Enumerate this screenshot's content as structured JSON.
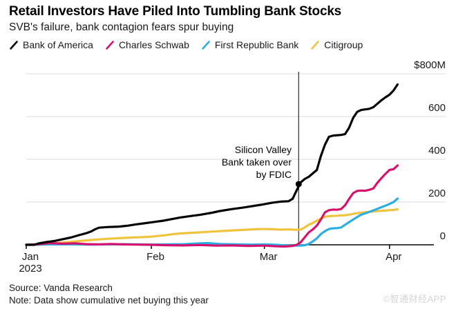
{
  "header": {
    "title": "Retail Investors Have Piled Into Tumbling Bank Stocks",
    "subtitle": "SVB's failure, bank contagion fears spur buying"
  },
  "footer": {
    "source": "Source: Vanda Research",
    "note": "Note: Data show cumulative net buying this year"
  },
  "watermark": "©智通财经APP",
  "colors": {
    "bank_of_america": "#000000",
    "charles_schwab": "#d6116e",
    "first_republic_bank": "#2caee0",
    "citigroup": "#f0c33c",
    "grid": "#d9d9d9",
    "axis": "#000000",
    "event_line": "#3a3a3a"
  },
  "chart_data": {
    "type": "line",
    "title": "Retail Investors Have Piled Into Tumbling Bank Stocks",
    "subtitle": "SVB's failure, bank contagion fears spur buying",
    "unit": "cumulative net retail buying, $M, year-to-date 2023",
    "x_axis": {
      "kind": "date-days-since-Jan-1-2023",
      "domain_days": [
        0,
        101
      ],
      "ticks": [
        {
          "day": 0,
          "label": "Jan",
          "sublabel": "2023"
        },
        {
          "day": 31,
          "label": "Feb",
          "sublabel": ""
        },
        {
          "day": 59,
          "label": "Mar",
          "sublabel": ""
        },
        {
          "day": 90,
          "label": "Apr",
          "sublabel": ""
        }
      ]
    },
    "y_axis": {
      "range": [
        0,
        800
      ],
      "grid": true,
      "ticks": [
        {
          "value": 800,
          "label": "$800M"
        },
        {
          "value": 600,
          "label": "600"
        },
        {
          "value": 400,
          "label": "400"
        },
        {
          "value": 200,
          "label": "200"
        },
        {
          "value": 0,
          "label": "0"
        }
      ]
    },
    "event": {
      "day": 67.5,
      "lines": [
        "Silicon Valley",
        "Bank taken over",
        "by FDIC"
      ],
      "marker_series": "Bank of America",
      "marker_value": 284
    },
    "legend_position": "top",
    "series": [
      {
        "name": "Citigroup",
        "color": "#f0c33c",
        "points": [
          [
            0,
            0
          ],
          [
            2,
            1
          ],
          [
            5,
            5
          ],
          [
            8,
            9
          ],
          [
            11,
            14
          ],
          [
            14,
            19
          ],
          [
            17,
            24
          ],
          [
            20,
            28
          ],
          [
            23,
            31
          ],
          [
            26,
            34
          ],
          [
            29,
            36
          ],
          [
            31,
            38
          ],
          [
            34,
            44
          ],
          [
            36,
            49
          ],
          [
            38,
            53
          ],
          [
            40,
            55
          ],
          [
            43,
            58
          ],
          [
            46,
            62
          ],
          [
            49,
            65
          ],
          [
            52,
            68
          ],
          [
            55,
            71
          ],
          [
            57,
            73
          ],
          [
            59,
            74
          ],
          [
            61,
            73
          ],
          [
            63,
            71
          ],
          [
            65,
            72
          ],
          [
            67,
            70
          ],
          [
            68,
            71
          ],
          [
            69,
            82
          ],
          [
            70,
            94
          ],
          [
            71,
            102
          ],
          [
            72,
            113
          ],
          [
            73,
            123
          ],
          [
            74,
            131
          ],
          [
            75,
            134
          ],
          [
            77,
            136
          ],
          [
            79,
            138
          ],
          [
            80,
            141
          ],
          [
            82,
            148
          ],
          [
            84,
            152
          ],
          [
            86,
            156
          ],
          [
            88,
            159
          ],
          [
            90,
            162
          ],
          [
            91,
            163
          ],
          [
            92,
            166
          ]
        ]
      },
      {
        "name": "First Republic Bank",
        "color": "#2caee0",
        "points": [
          [
            0,
            0
          ],
          [
            4,
            1
          ],
          [
            8,
            3
          ],
          [
            12,
            2
          ],
          [
            16,
            1
          ],
          [
            20,
            2
          ],
          [
            24,
            3
          ],
          [
            28,
            2
          ],
          [
            31,
            1
          ],
          [
            35,
            2
          ],
          [
            39,
            3
          ],
          [
            43,
            7
          ],
          [
            45,
            8
          ],
          [
            48,
            4
          ],
          [
            52,
            2
          ],
          [
            56,
            1
          ],
          [
            59,
            2
          ],
          [
            62,
            0
          ],
          [
            64,
            -3
          ],
          [
            66,
            -4
          ],
          [
            68,
            -4
          ],
          [
            69,
            -2
          ],
          [
            70,
            4
          ],
          [
            71,
            16
          ],
          [
            72,
            30
          ],
          [
            73,
            50
          ],
          [
            74,
            64
          ],
          [
            75,
            74
          ],
          [
            76,
            77
          ],
          [
            77,
            78
          ],
          [
            78,
            81
          ],
          [
            79,
            94
          ],
          [
            80,
            106
          ],
          [
            81,
            118
          ],
          [
            82,
            130
          ],
          [
            83,
            141
          ],
          [
            84,
            147
          ],
          [
            85,
            154
          ],
          [
            86,
            161
          ],
          [
            87,
            168
          ],
          [
            88,
            176
          ],
          [
            89,
            183
          ],
          [
            90,
            191
          ],
          [
            91,
            200
          ],
          [
            92,
            216
          ]
        ]
      },
      {
        "name": "Charles Schwab",
        "color": "#d6116e",
        "points": [
          [
            0,
            0
          ],
          [
            3,
            3
          ],
          [
            6,
            8
          ],
          [
            9,
            5
          ],
          [
            12,
            7
          ],
          [
            15,
            3
          ],
          [
            18,
            2
          ],
          [
            21,
            4
          ],
          [
            24,
            2
          ],
          [
            27,
            1
          ],
          [
            31,
            0
          ],
          [
            35,
            -2
          ],
          [
            39,
            -3
          ],
          [
            43,
            -1
          ],
          [
            47,
            -4
          ],
          [
            51,
            -3
          ],
          [
            55,
            -5
          ],
          [
            59,
            -4
          ],
          [
            62,
            -7
          ],
          [
            64,
            -8
          ],
          [
            66,
            -5
          ],
          [
            67,
            0
          ],
          [
            68,
            12
          ],
          [
            69,
            35
          ],
          [
            70,
            58
          ],
          [
            71,
            72
          ],
          [
            72,
            90
          ],
          [
            73,
            118
          ],
          [
            74,
            152
          ],
          [
            75,
            162
          ],
          [
            76,
            165
          ],
          [
            77,
            164
          ],
          [
            78,
            167
          ],
          [
            79,
            185
          ],
          [
            80,
            215
          ],
          [
            81,
            242
          ],
          [
            82,
            252
          ],
          [
            83,
            254
          ],
          [
            84,
            253
          ],
          [
            85,
            257
          ],
          [
            86,
            264
          ],
          [
            87,
            290
          ],
          [
            88,
            312
          ],
          [
            89,
            332
          ],
          [
            90,
            350
          ],
          [
            91,
            354
          ],
          [
            92,
            371
          ]
        ]
      },
      {
        "name": "Bank of America",
        "color": "#000000",
        "points": [
          [
            0,
            0
          ],
          [
            2,
            0
          ],
          [
            3,
            6
          ],
          [
            5,
            13
          ],
          [
            7,
            18
          ],
          [
            9,
            26
          ],
          [
            11,
            34
          ],
          [
            13,
            45
          ],
          [
            15,
            55
          ],
          [
            16,
            62
          ],
          [
            17,
            72
          ],
          [
            18,
            80
          ],
          [
            20,
            83
          ],
          [
            23,
            85
          ],
          [
            25,
            89
          ],
          [
            27,
            95
          ],
          [
            29,
            100
          ],
          [
            31,
            105
          ],
          [
            34,
            113
          ],
          [
            36,
            120
          ],
          [
            38,
            127
          ],
          [
            41,
            135
          ],
          [
            43,
            140
          ],
          [
            46,
            150
          ],
          [
            48,
            158
          ],
          [
            51,
            167
          ],
          [
            54,
            175
          ],
          [
            57,
            184
          ],
          [
            59,
            190
          ],
          [
            61,
            197
          ],
          [
            63,
            202
          ],
          [
            65,
            204
          ],
          [
            66,
            215
          ],
          [
            67,
            255
          ],
          [
            68,
            292
          ],
          [
            69,
            308
          ],
          [
            70,
            318
          ],
          [
            72,
            350
          ],
          [
            73,
            415
          ],
          [
            74,
            468
          ],
          [
            75,
            505
          ],
          [
            76,
            511
          ],
          [
            78,
            514
          ],
          [
            79,
            518
          ],
          [
            80,
            548
          ],
          [
            81,
            594
          ],
          [
            82,
            622
          ],
          [
            83,
            631
          ],
          [
            85,
            636
          ],
          [
            86,
            644
          ],
          [
            87,
            660
          ],
          [
            88,
            676
          ],
          [
            89,
            690
          ],
          [
            90,
            702
          ],
          [
            91,
            722
          ],
          [
            92,
            750
          ]
        ]
      }
    ]
  }
}
